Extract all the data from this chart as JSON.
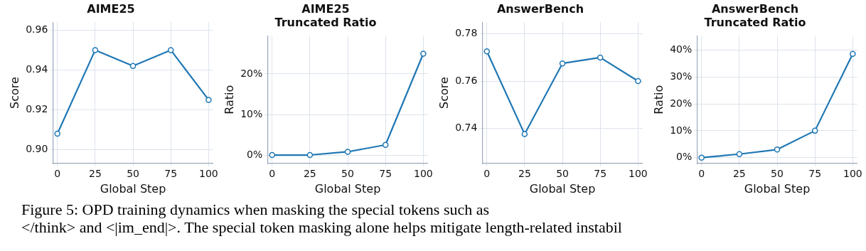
{
  "chart_data": [
    {
      "type": "line",
      "title": "AIME25",
      "xlabel": "Global Step",
      "ylabel": "Score",
      "x": [
        0,
        25,
        50,
        75,
        100
      ],
      "series": [
        {
          "color": "#1f77b4",
          "values": [
            0.908,
            0.95,
            0.942,
            0.95,
            0.925
          ]
        }
      ],
      "xlim": [
        -3,
        103
      ],
      "xticks": [
        0,
        25,
        50,
        75,
        100
      ],
      "ylim": [
        0.893,
        0.964
      ],
      "yticks": [
        {
          "value": 0.9,
          "label": "0.90"
        },
        {
          "value": 0.92,
          "label": "0.92"
        },
        {
          "value": 0.94,
          "label": "0.94"
        },
        {
          "value": 0.96,
          "label": "0.96"
        }
      ],
      "grid": true,
      "marker": "circle",
      "line_style": "solid",
      "annotations": [
        "Figure 5: OPD training dynamics when masking the special tokens such as",
        "</think> and <|im_end|>. The special token masking alone helps mitigate length-related instabil"
      ]
    },
    {
      "type": "line",
      "title": "AIME25\nTruncated Ratio",
      "xlabel": "Global Step",
      "ylabel": "Ratio",
      "x": [
        0,
        25,
        50,
        75,
        100
      ],
      "series": [
        {
          "color": "#1f77b4",
          "values": [
            0,
            0,
            0.8,
            2.5,
            25
          ]
        }
      ],
      "xlim": [
        -3,
        103
      ],
      "xticks": [
        0,
        25,
        50,
        75,
        100
      ],
      "ylim": [
        -2.1,
        29.4
      ],
      "yticks": [
        {
          "value": 0,
          "label": "0%"
        },
        {
          "value": 10,
          "label": "10%"
        },
        {
          "value": 20,
          "label": "20%"
        }
      ],
      "grid": true,
      "marker": "circle",
      "line_style": "solid"
    },
    {
      "type": "line",
      "title": "AnswerBench",
      "xlabel": "Global Step",
      "ylabel": "Score",
      "x": [
        0,
        25,
        50,
        75,
        100
      ],
      "series": [
        {
          "color": "#1f77b4",
          "values": [
            0.7726,
            0.7375,
            0.7675,
            0.77,
            0.76
          ]
        }
      ],
      "xlim": [
        -3,
        103
      ],
      "xticks": [
        0,
        25,
        50,
        75,
        100
      ],
      "ylim": [
        0.725,
        0.785
      ],
      "yticks": [
        {
          "value": 0.74,
          "label": "0.74"
        },
        {
          "value": 0.76,
          "label": "0.76"
        },
        {
          "value": 0.78,
          "label": "0.78"
        }
      ],
      "grid": true,
      "marker": "circle",
      "line_style": "solid"
    },
    {
      "type": "line",
      "title": "AnswerBench\nTruncated Ratio",
      "xlabel": "Global Step",
      "ylabel": "Ratio",
      "x": [
        0,
        25,
        50,
        75,
        100
      ],
      "series": [
        {
          "color": "#1f77b4",
          "values": [
            0,
            1.3,
            3,
            10,
            38.6
          ]
        }
      ],
      "xlim": [
        -3,
        103
      ],
      "xticks": [
        0,
        25,
        50,
        75,
        100
      ],
      "ylim": [
        -2.2,
        45.3
      ],
      "yticks": [
        {
          "value": 0,
          "label": "0%"
        },
        {
          "value": 10,
          "label": "10%"
        },
        {
          "value": 20,
          "label": "20%"
        },
        {
          "value": 30,
          "label": "30%"
        },
        {
          "value": 40,
          "label": "40%"
        }
      ],
      "grid": true,
      "marker": "circle",
      "line_style": "solid"
    }
  ]
}
